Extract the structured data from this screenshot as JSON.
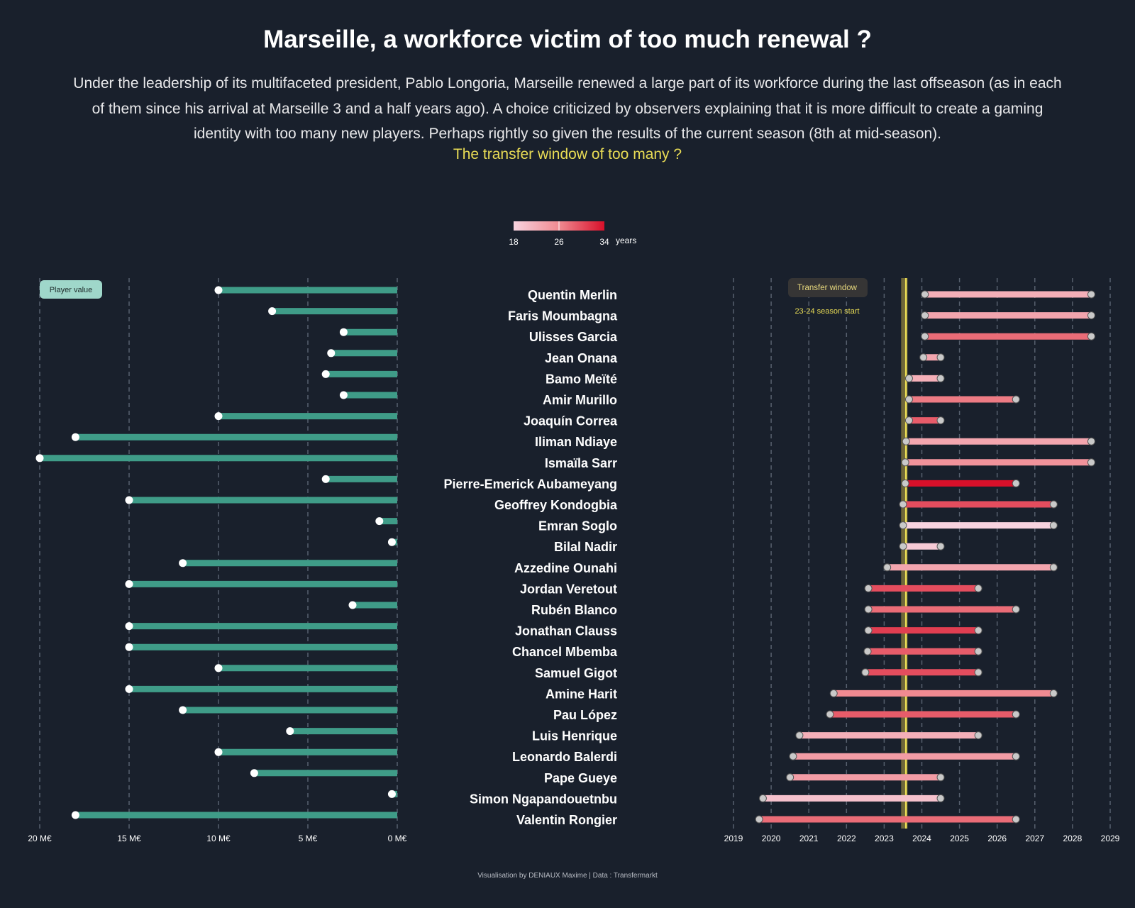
{
  "title": "Marseille, a workforce victim of too much renewal ?",
  "subtitle": "Under the leadership of its multifaceted president, Pablo Longoria, Marseille renewed a large part of its workforce during the last offseason (as in each of them since his arrival at Marseille 3 and a half years ago). A choice criticized by observers explaining that it is more difficult to create a gaming identity with too many new players. Perhaps rightly so given the results of the current season (8th at mid-season).",
  "highlight": "The transfer window of too many ?",
  "caption": "Visualisation by DENIAUX Maxime | Data : Transfermarkt",
  "colors": {
    "background": "#19202c",
    "value_bar": "#3f9c88",
    "highlight": "#e9dc55",
    "age_low": "#f4c8d6",
    "age_high": "#d8102a"
  },
  "chart_data": [
    {
      "type": "bar",
      "panel": "player-value",
      "label_box": "Player value",
      "xlim": [
        20,
        0
      ],
      "x_ticks": [
        20,
        15,
        10,
        5,
        0
      ],
      "x_tick_labels": [
        "20 M€",
        "15 M€",
        "10 M€",
        "5 M€",
        "0 M€"
      ],
      "grid": true,
      "unit": "M€"
    },
    {
      "type": "dumbbell",
      "panel": "contract-timeline",
      "xlim": [
        2019,
        2029
      ],
      "x_ticks": [
        2019,
        2020,
        2021,
        2022,
        2023,
        2024,
        2025,
        2026,
        2027,
        2028,
        2029
      ],
      "grid": true,
      "transfer_window_label": "Transfer window",
      "transfer_window": [
        2023.45,
        2023.62
      ],
      "season_start_label": "23-24 season start",
      "season_start": 2023.58,
      "legend": {
        "min_label": "18",
        "mid_label": "26",
        "max_label": "34",
        "unit_label": "years",
        "placement": "top-center"
      }
    }
  ],
  "players": [
    {
      "name": "Quentin Merlin",
      "value": 10,
      "start": 2024.08,
      "end": 2028.5,
      "age": 22
    },
    {
      "name": "Faris Moumbagna",
      "value": 7,
      "start": 2024.08,
      "end": 2028.5,
      "age": 23
    },
    {
      "name": "Ulisses Garcia",
      "value": 3,
      "start": 2024.08,
      "end": 2028.5,
      "age": 28
    },
    {
      "name": "Jean Onana",
      "value": 3.7,
      "start": 2024.04,
      "end": 2024.5,
      "age": 23
    },
    {
      "name": "Bamo Meïté",
      "value": 4,
      "start": 2023.66,
      "end": 2024.5,
      "age": 22
    },
    {
      "name": "Amir Murillo",
      "value": 3,
      "start": 2023.66,
      "end": 2026.5,
      "age": 27
    },
    {
      "name": "Joaquín Correa",
      "value": 10,
      "start": 2023.66,
      "end": 2024.5,
      "age": 29
    },
    {
      "name": "Iliman Ndiaye",
      "value": 18,
      "start": 2023.58,
      "end": 2028.5,
      "age": 23
    },
    {
      "name": "Ismaïla Sarr",
      "value": 20,
      "start": 2023.56,
      "end": 2028.5,
      "age": 25
    },
    {
      "name": "Pierre-Emerick Aubameyang",
      "value": 4,
      "start": 2023.56,
      "end": 2026.5,
      "age": 34
    },
    {
      "name": "Geoffrey Kondogbia",
      "value": 15,
      "start": 2023.5,
      "end": 2027.5,
      "age": 30
    },
    {
      "name": "Emran Soglo",
      "value": 1,
      "start": 2023.5,
      "end": 2027.5,
      "age": 18
    },
    {
      "name": "Bilal Nadir",
      "value": 0.3,
      "start": 2023.5,
      "end": 2024.5,
      "age": 19
    },
    {
      "name": "Azzedine Ounahi",
      "value": 12,
      "start": 2023.08,
      "end": 2027.5,
      "age": 23
    },
    {
      "name": "Jordan Veretout",
      "value": 15,
      "start": 2022.58,
      "end": 2025.5,
      "age": 30
    },
    {
      "name": "Rubén Blanco",
      "value": 2.5,
      "start": 2022.58,
      "end": 2026.5,
      "age": 28
    },
    {
      "name": "Jonathan Clauss",
      "value": 15,
      "start": 2022.58,
      "end": 2025.5,
      "age": 31
    },
    {
      "name": "Chancel Mbemba",
      "value": 15,
      "start": 2022.56,
      "end": 2025.5,
      "age": 29
    },
    {
      "name": "Samuel Gigot",
      "value": 10,
      "start": 2022.5,
      "end": 2025.5,
      "age": 30
    },
    {
      "name": "Amine Harit",
      "value": 15,
      "start": 2021.66,
      "end": 2027.5,
      "age": 26
    },
    {
      "name": "Pau López",
      "value": 12,
      "start": 2021.56,
      "end": 2026.5,
      "age": 29
    },
    {
      "name": "Luis Henrique",
      "value": 6,
      "start": 2020.75,
      "end": 2025.5,
      "age": 22
    },
    {
      "name": "Leonardo Balerdi",
      "value": 10,
      "start": 2020.58,
      "end": 2026.5,
      "age": 24
    },
    {
      "name": "Pape Gueye",
      "value": 8,
      "start": 2020.5,
      "end": 2024.5,
      "age": 24
    },
    {
      "name": "Simon Ngapandouetnbu",
      "value": 0.3,
      "start": 2019.78,
      "end": 2024.5,
      "age": 20
    },
    {
      "name": "Valentin Rongier",
      "value": 18,
      "start": 2019.68,
      "end": 2026.5,
      "age": 28
    }
  ]
}
